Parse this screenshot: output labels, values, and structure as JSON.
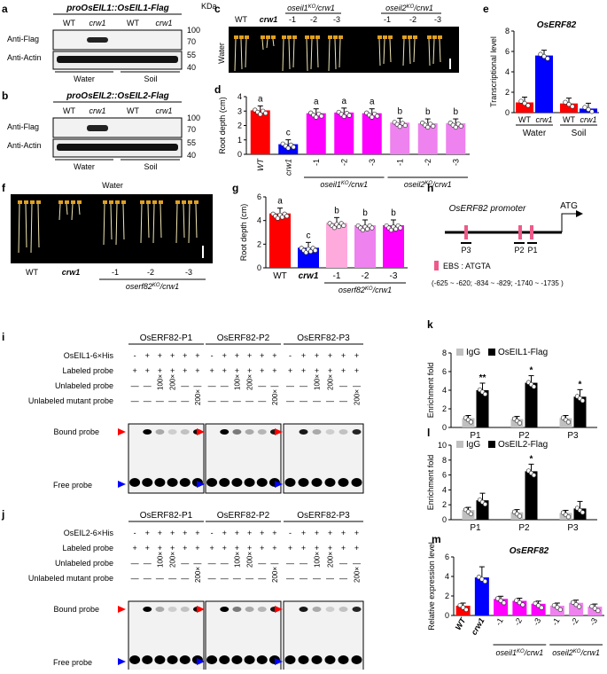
{
  "panels": {
    "a": {
      "letter": "a",
      "title": "proOsEIL1::OsEIL1-Flag",
      "cols": [
        "WT",
        "crw1",
        "WT",
        "crw1"
      ],
      "rows": [
        "Anti-Flag",
        "Anti-Actin"
      ],
      "kda_label": "KDa",
      "kda": [
        "100",
        "70",
        "55",
        "40"
      ],
      "groups": [
        "Water",
        "Soil"
      ]
    },
    "b": {
      "letter": "b",
      "title": "proOsEIL2::OsEIL2-Flag",
      "cols": [
        "WT",
        "crw1",
        "WT",
        "crw1"
      ],
      "rows": [
        "Anti-Flag",
        "Anti-Actin"
      ],
      "kda_label": "KDa",
      "kda": [
        "100",
        "70",
        "55",
        "40"
      ],
      "groups": [
        "Water",
        "Soil"
      ]
    },
    "c": {
      "letter": "c",
      "side": "Water",
      "labels": [
        "WT",
        "crw1",
        "-1",
        "-2",
        "-3",
        "-1",
        "-2",
        "-3"
      ],
      "group1": "oseil1",
      "group1_sup": "KO",
      "group1_suffix": "/crw1",
      "group2": "oseil2",
      "group2_sup": "KO",
      "group2_suffix": "/crw1"
    },
    "f": {
      "letter": "f",
      "top": "Water",
      "labels": [
        "WT",
        "crw1",
        "-1",
        "-2",
        "-3"
      ],
      "group": "oserf82",
      "group_sup": "KO",
      "group_suffix": "/crw1"
    },
    "h": {
      "letter": "h",
      "promoter": "OsERF82 promoter",
      "atg": "ATG",
      "sites": [
        "P3",
        "P2",
        "P1"
      ],
      "legend": "EBS : ATGTA",
      "positions": "(-625 ~ -620;  -834 ~ -829;  -1740 ~ -1735 )"
    }
  },
  "emsa": {
    "i": {
      "letter": "i",
      "protein": "OsEIL1-6×His",
      "titles": [
        "OsERF82-P1",
        "OsERF82-P2",
        "OsERF82-P3"
      ],
      "rows": [
        "OsEIL1-6×His",
        "Labeled probe",
        "Unlabeled probe",
        "Unlabeled mutant probe"
      ],
      "bound": "Bound probe",
      "free": "Free probe",
      "signs": {
        "protein": [
          "-",
          "+",
          "+",
          "+",
          "+",
          "+"
        ],
        "labeled": [
          "+",
          "+",
          "+",
          "+",
          "+",
          "+"
        ],
        "unlabeled": [
          "—",
          "—",
          "100×",
          "200×",
          "—",
          "—"
        ],
        "mutant": [
          "—",
          "—",
          "—",
          "—",
          "—",
          "200×"
        ]
      }
    },
    "j": {
      "letter": "j",
      "protein": "OsEIL2-6×His",
      "titles": [
        "OsERF82-P1",
        "OsERF82-P2",
        "OsERF82-P3"
      ],
      "rows": [
        "OsEIL2-6×His",
        "Labeled probe",
        "Unlabeled probe",
        "Unlabeled mutant probe"
      ],
      "bound": "Bound probe",
      "free": "Free probe",
      "signs": {
        "protein": [
          "-",
          "+",
          "+",
          "+",
          "+",
          "+"
        ],
        "labeled": [
          "+",
          "+",
          "+",
          "+",
          "+",
          "+"
        ],
        "unlabeled": [
          "—",
          "—",
          "100×",
          "200×",
          "—",
          "—"
        ],
        "mutant": [
          "—",
          "—",
          "—",
          "—",
          "—",
          "200×"
        ]
      }
    }
  },
  "colors": {
    "red": "#ff0000",
    "blue": "#0000ff",
    "magenta": "#ff00ff",
    "pink": "#ee82ee",
    "lightpink": "#ffaadd",
    "gray": "#c0c0c0",
    "black": "#000000",
    "ebs": "#ee5a8a"
  },
  "chart_data": [
    {
      "id": "d",
      "letter": "d",
      "type": "bar",
      "ylabel": "Root depth (cm)",
      "ylim": [
        0,
        4
      ],
      "yticks": [
        "0",
        "1",
        "2",
        "3",
        "4"
      ],
      "categories": [
        "WT",
        "crw1",
        "-1",
        "-2",
        "-3",
        "-1",
        "-2",
        "-3"
      ],
      "values": [
        3.05,
        0.7,
        2.85,
        2.9,
        2.85,
        2.2,
        2.15,
        2.15
      ],
      "letters": [
        "a",
        "c",
        "a",
        "a",
        "a",
        "b",
        "b",
        "b"
      ],
      "group1": "oseil1",
      "group1_sup": "KO",
      "group1_suffix": "/crw1",
      "group2": "oseil2",
      "group2_sup": "KO",
      "group2_suffix": "/crw1"
    },
    {
      "id": "e",
      "letter": "e",
      "type": "bar",
      "title": "OsERF82",
      "ylabel": "Transcriptional level",
      "ylim": [
        0,
        8
      ],
      "yticks": [
        "0",
        "2",
        "4",
        "6",
        "8"
      ],
      "categories": [
        "WT",
        "crw1",
        "WT",
        "crw1"
      ],
      "values": [
        1.0,
        5.6,
        0.9,
        0.4
      ],
      "groups": [
        "Water",
        "Soil"
      ]
    },
    {
      "id": "g",
      "letter": "g",
      "type": "bar",
      "ylabel": "Root depth (cm)",
      "ylim": [
        0,
        6
      ],
      "yticks": [
        "0",
        "2",
        "4",
        "6"
      ],
      "categories": [
        "WT",
        "crw1",
        "-1",
        "-2",
        "-3"
      ],
      "values": [
        4.6,
        1.7,
        3.8,
        3.6,
        3.6
      ],
      "letters": [
        "a",
        "c",
        "b",
        "b",
        "b"
      ],
      "group": "oserf82",
      "group_sup": "KO",
      "group_suffix": "/crw1"
    },
    {
      "id": "k",
      "letter": "k",
      "type": "bar",
      "ylabel": "Enrichment fold",
      "ylim": [
        0,
        8
      ],
      "yticks": [
        "0",
        "2",
        "4",
        "6",
        "8"
      ],
      "categories": [
        "P1",
        "P2",
        "P3"
      ],
      "series": [
        {
          "name": "IgG",
          "values": [
            1.0,
            0.9,
            1.0
          ]
        },
        {
          "name": "OsEIL1-Flag",
          "values": [
            4.0,
            4.8,
            3.3
          ]
        }
      ],
      "stars": [
        "**",
        "*",
        "*"
      ]
    },
    {
      "id": "l",
      "letter": "l",
      "type": "bar",
      "ylabel": "Enrichment fold",
      "ylim": [
        0,
        10
      ],
      "yticks": [
        "0",
        "2",
        "4",
        "6",
        "8",
        "10"
      ],
      "categories": [
        "P1",
        "P2",
        "P3"
      ],
      "series": [
        {
          "name": "IgG",
          "values": [
            1.3,
            1.0,
            0.9
          ]
        },
        {
          "name": "OsEIL2-Flag",
          "values": [
            2.6,
            6.5,
            1.5
          ]
        }
      ],
      "stars": [
        "",
        "*",
        ""
      ]
    },
    {
      "id": "m",
      "letter": "m",
      "type": "bar",
      "title": "OsERF82",
      "ylabel": "Relative expression level",
      "ylim": [
        0,
        6
      ],
      "yticks": [
        "0",
        "2",
        "4",
        "6"
      ],
      "categories": [
        "WT",
        "crw1",
        "-1",
        "-2",
        "-3",
        "-1",
        "-2",
        "-3"
      ],
      "values": [
        1.0,
        3.9,
        1.7,
        1.5,
        1.2,
        1.0,
        1.3,
        0.9
      ],
      "group1": "oseil1",
      "group1_sup": "KO",
      "group1_suffix": "/crw1",
      "group2": "oseil2",
      "group2_sup": "KO",
      "group2_suffix": "/crw1"
    }
  ]
}
